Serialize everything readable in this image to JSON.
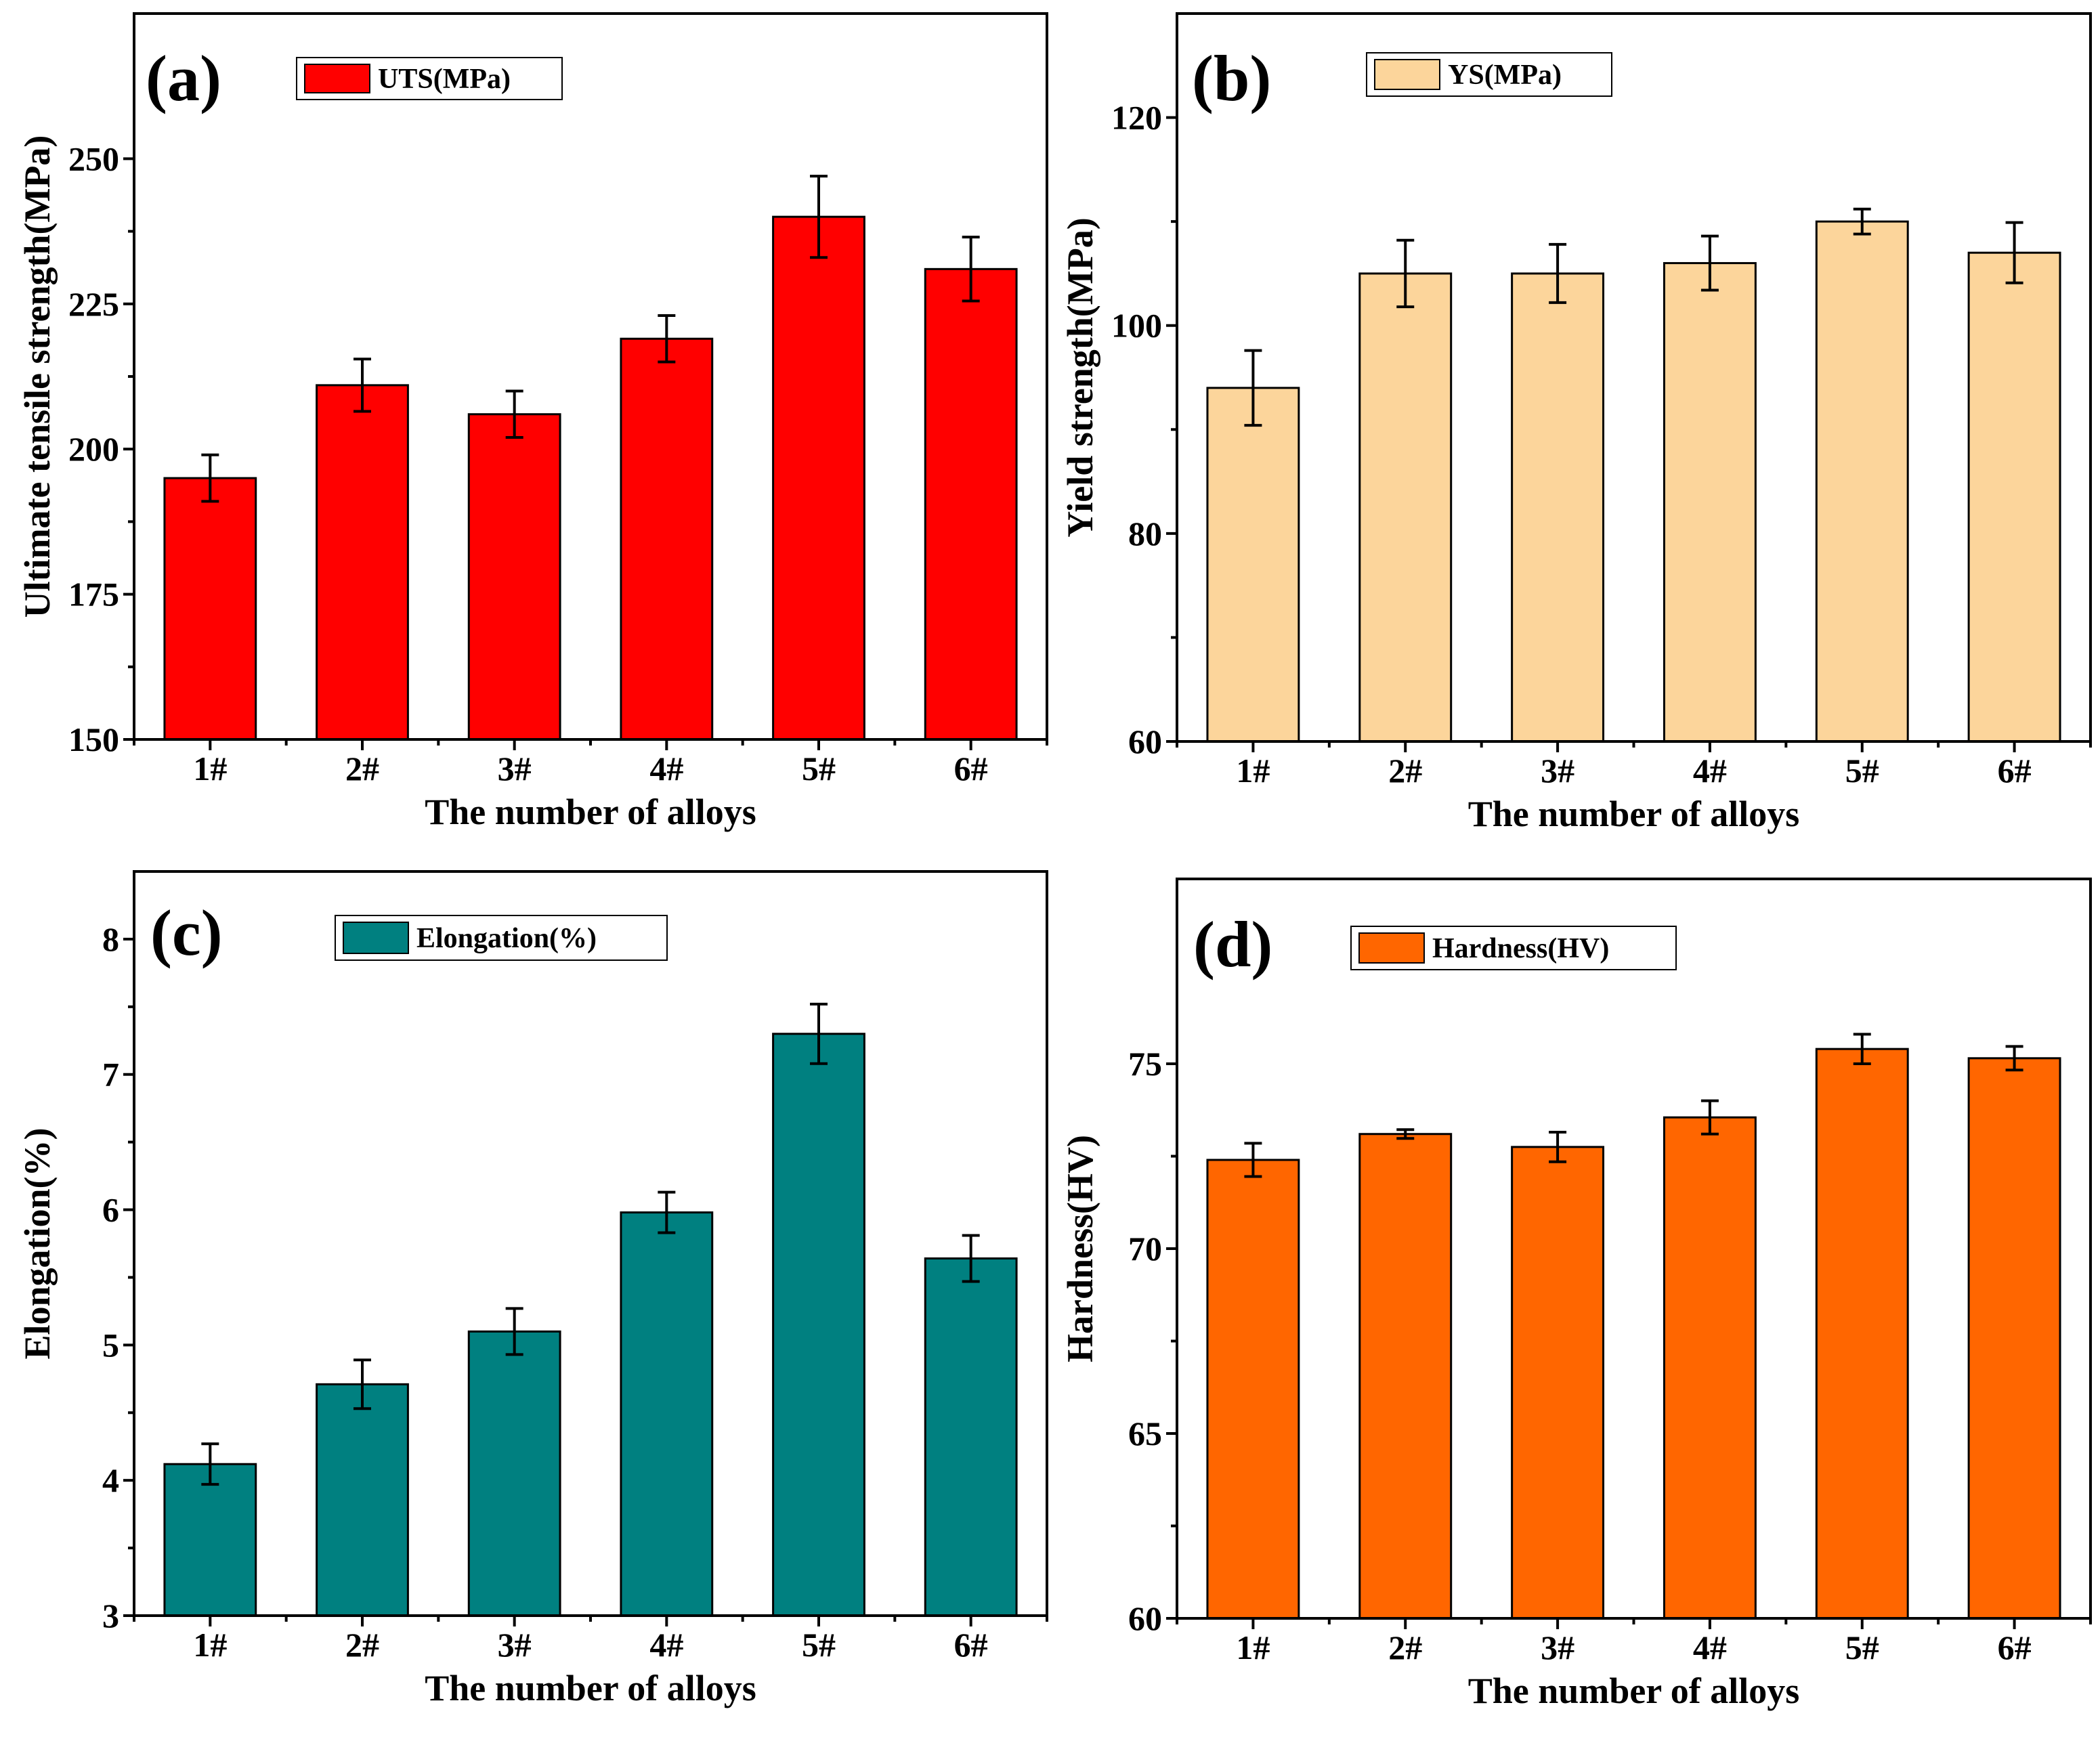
{
  "chart_data": [
    {
      "type": "bar",
      "panel_label": "(a)",
      "legend": "UTS(MPa)",
      "color": "#ff0000",
      "categories": [
        "1#",
        "2#",
        "3#",
        "4#",
        "5#",
        "6#"
      ],
      "values": [
        195,
        211,
        206,
        219,
        240,
        231
      ],
      "errors": [
        4,
        4.5,
        4,
        4,
        7,
        5.5
      ],
      "xlabel": "The number of alloys",
      "ylabel": "Ultimate tensile strength(MPa)",
      "ylim": [
        150,
        275
      ],
      "yticks": [
        150,
        175,
        200,
        225,
        250
      ],
      "ytick_labels": [
        "150",
        "175",
        "200",
        "225",
        "250"
      ]
    },
    {
      "type": "bar",
      "panel_label": "(b)",
      "legend": "YS(MPa)",
      "color": "#fcd59b",
      "categories": [
        "1#",
        "2#",
        "3#",
        "4#",
        "5#",
        "6#"
      ],
      "values": [
        94,
        105,
        105,
        106,
        110,
        107
      ],
      "errors": [
        3.6,
        3.2,
        2.8,
        2.6,
        1.2,
        2.9
      ],
      "xlabel": "The number of alloys",
      "ylabel": "Yield strength(MPa)",
      "ylim": [
        60,
        130
      ],
      "yticks": [
        60,
        80,
        100,
        120
      ],
      "ytick_labels": [
        "60",
        "80",
        "100",
        "120"
      ]
    },
    {
      "type": "bar",
      "panel_label": "(c)",
      "legend": "Elongation(%)",
      "color": "#008080",
      "categories": [
        "1#",
        "2#",
        "3#",
        "4#",
        "5#",
        "6#"
      ],
      "values": [
        4.12,
        4.71,
        5.1,
        5.98,
        7.3,
        5.64
      ],
      "errors": [
        0.15,
        0.18,
        0.17,
        0.15,
        0.22,
        0.17
      ],
      "xlabel": "The number of alloys",
      "ylabel": "Elongation(%)",
      "ylim": [
        3,
        8.5
      ],
      "yticks": [
        3,
        4,
        5,
        6,
        7,
        8
      ],
      "ytick_labels": [
        "3",
        "4",
        "5",
        "6",
        "7",
        "8"
      ]
    },
    {
      "type": "bar",
      "panel_label": "(d)",
      "legend": "Hardness(HV)",
      "color": "#ff6600",
      "categories": [
        "1#",
        "2#",
        "3#",
        "4#",
        "5#",
        "6#"
      ],
      "values": [
        72.4,
        73.1,
        72.75,
        73.55,
        75.4,
        75.15
      ],
      "errors": [
        0.45,
        0.12,
        0.4,
        0.45,
        0.4,
        0.32
      ],
      "xlabel": "The number of alloys",
      "ylabel": "Hardness(HV)",
      "ylim": [
        60,
        80
      ],
      "yticks": [
        60,
        65,
        70,
        75
      ],
      "ytick_labels": [
        "60",
        "65",
        "70",
        "75"
      ]
    }
  ]
}
